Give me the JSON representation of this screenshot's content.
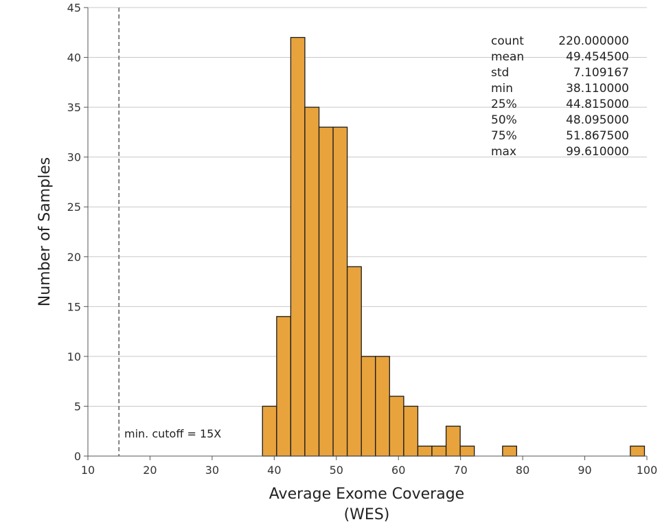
{
  "chart_data": {
    "type": "bar",
    "subtype": "histogram",
    "title": "",
    "xlabel": "Average Exome Coverage",
    "xlabel_line2": "(WES)",
    "ylabel": "Number of Samples",
    "xlim": [
      10,
      100
    ],
    "ylim": [
      0,
      45
    ],
    "xticks": [
      10,
      20,
      30,
      40,
      50,
      60,
      70,
      80,
      90,
      100
    ],
    "yticks": [
      0,
      5,
      10,
      15,
      20,
      25,
      30,
      35,
      40,
      45
    ],
    "grid": "horizontal",
    "bar_color": "#E8A33D",
    "bar_edge_color": "#1a1a1a",
    "bins": [
      {
        "x0": 38.11,
        "x1": 40.39,
        "count": 5
      },
      {
        "x0": 40.39,
        "x1": 42.66,
        "count": 14
      },
      {
        "x0": 42.66,
        "x1": 44.93,
        "count": 42
      },
      {
        "x0": 44.93,
        "x1": 47.21,
        "count": 35
      },
      {
        "x0": 47.21,
        "x1": 49.48,
        "count": 33
      },
      {
        "x0": 49.48,
        "x1": 51.75,
        "count": 33
      },
      {
        "x0": 51.75,
        "x1": 54.03,
        "count": 19
      },
      {
        "x0": 54.03,
        "x1": 56.3,
        "count": 10
      },
      {
        "x0": 56.3,
        "x1": 58.57,
        "count": 10
      },
      {
        "x0": 58.57,
        "x1": 60.85,
        "count": 6
      },
      {
        "x0": 60.85,
        "x1": 63.12,
        "count": 5
      },
      {
        "x0": 63.12,
        "x1": 65.39,
        "count": 1
      },
      {
        "x0": 65.39,
        "x1": 67.67,
        "count": 1
      },
      {
        "x0": 67.67,
        "x1": 69.94,
        "count": 3
      },
      {
        "x0": 69.94,
        "x1": 72.21,
        "count": 1
      },
      {
        "x0": 76.76,
        "x1": 79.03,
        "count": 1
      },
      {
        "x0": 97.33,
        "x1": 99.61,
        "count": 1
      }
    ],
    "cutoff_line": {
      "x": 15,
      "style": "dashed",
      "color": "#7f7f7f",
      "label": "min. cutoff = 15X"
    },
    "stats_table": [
      {
        "label": "count",
        "value": "220.000000"
      },
      {
        "label": "mean",
        "value": "49.454500"
      },
      {
        "label": "std",
        "value": "7.109167"
      },
      {
        "label": "min",
        "value": "38.110000"
      },
      {
        "label": "25%",
        "value": "44.815000"
      },
      {
        "label": "50%",
        "value": "48.095000"
      },
      {
        "label": "75%",
        "value": "51.867500"
      },
      {
        "label": "max",
        "value": "99.610000"
      }
    ]
  }
}
